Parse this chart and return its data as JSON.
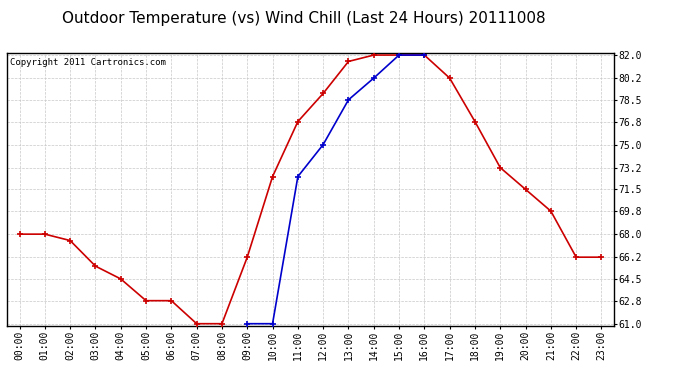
{
  "title": "Outdoor Temperature (vs) Wind Chill (Last 24 Hours) 20111008",
  "copyright": "Copyright 2011 Cartronics.com",
  "x_labels": [
    "00:00",
    "01:00",
    "02:00",
    "03:00",
    "04:00",
    "05:00",
    "06:00",
    "07:00",
    "08:00",
    "09:00",
    "10:00",
    "11:00",
    "12:00",
    "13:00",
    "14:00",
    "15:00",
    "16:00",
    "17:00",
    "18:00",
    "19:00",
    "20:00",
    "21:00",
    "22:00",
    "23:00"
  ],
  "temp": [
    68.0,
    68.0,
    67.5,
    65.5,
    64.5,
    62.8,
    62.8,
    61.0,
    61.0,
    66.2,
    72.5,
    76.8,
    79.0,
    81.5,
    82.0,
    82.0,
    82.0,
    80.2,
    76.8,
    73.2,
    71.5,
    69.8,
    66.2,
    66.2
  ],
  "windchill": [
    null,
    null,
    null,
    null,
    null,
    null,
    null,
    null,
    null,
    61.0,
    61.0,
    72.5,
    75.0,
    78.5,
    80.2,
    82.0,
    82.0,
    null,
    null,
    null,
    null,
    null,
    null,
    null
  ],
  "temp_color": "#cc0000",
  "windchill_color": "#0000cc",
  "bg_color": "#ffffff",
  "plot_bg_color": "#ffffff",
  "grid_color": "#c8c8c8",
  "ylim_min": 61.0,
  "ylim_max": 82.0,
  "yticks": [
    61.0,
    62.8,
    64.5,
    66.2,
    68.0,
    69.8,
    71.5,
    73.2,
    75.0,
    76.8,
    78.5,
    80.2,
    82.0
  ],
  "title_fontsize": 11,
  "copyright_fontsize": 6.5,
  "tick_fontsize": 7,
  "marker_size": 4,
  "line_width": 1.2
}
